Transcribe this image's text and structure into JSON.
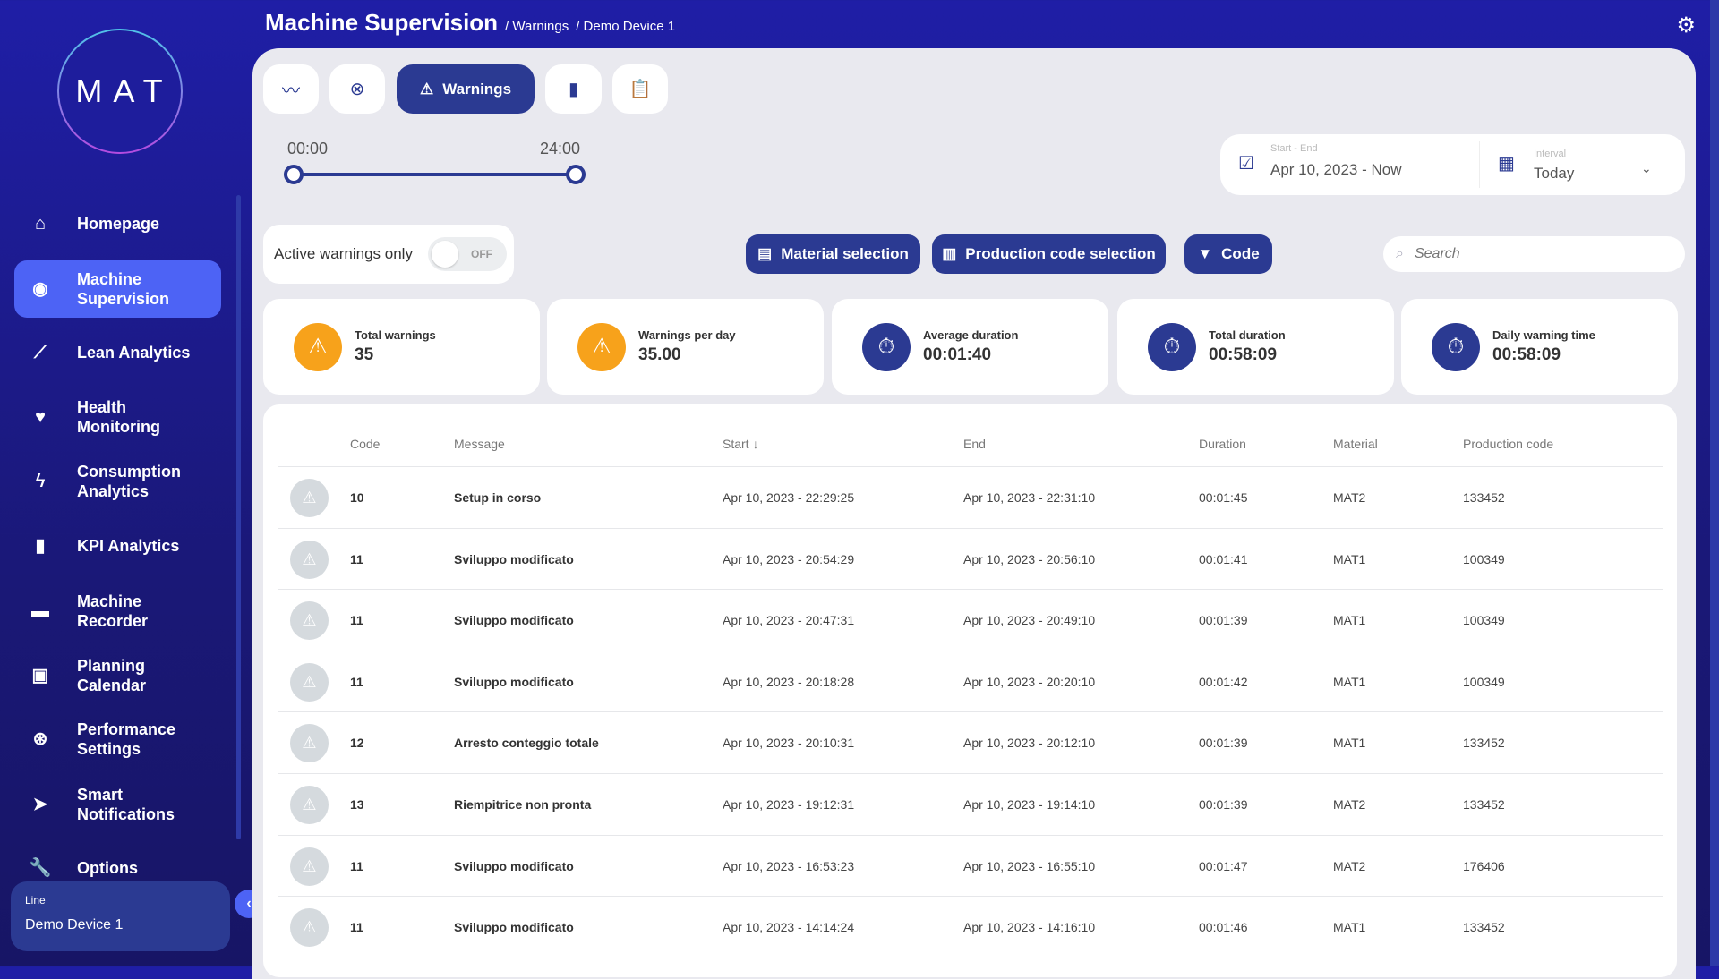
{
  "header": {
    "title": "Machine Supervision",
    "breadcrumbs": [
      "/ Warnings",
      "/ Demo Device 1"
    ]
  },
  "logo": "MAT",
  "sidebar": {
    "items": [
      {
        "label": "Homepage",
        "icon": "home-icon",
        "glyph": "⌂"
      },
      {
        "label": "Machine Supervision",
        "icon": "eye-icon",
        "glyph": "◉",
        "active": true
      },
      {
        "label": "Lean Analytics",
        "icon": "trend-icon",
        "glyph": "⟋"
      },
      {
        "label": "Health Monitoring",
        "icon": "heart-pulse-icon",
        "glyph": "♥"
      },
      {
        "label": "Consumption Analytics",
        "icon": "lightning-icon",
        "glyph": "ϟ"
      },
      {
        "label": "KPI Analytics",
        "icon": "bar-chart-icon",
        "glyph": "▮"
      },
      {
        "label": "Machine Recorder",
        "icon": "recorder-icon",
        "glyph": "▬"
      },
      {
        "label": "Planning Calendar",
        "icon": "calendar-icon",
        "glyph": "▣"
      },
      {
        "label": "Performance Settings",
        "icon": "gauge-icon",
        "glyph": "⊛"
      },
      {
        "label": "Smart Notifications",
        "icon": "send-icon",
        "glyph": "➤"
      },
      {
        "label": "Options",
        "icon": "wrench-icon",
        "glyph": "🔧"
      }
    ],
    "line_label": "Line",
    "line_value": "Demo Device 1"
  },
  "tabs": [
    {
      "icon": "trend-icon",
      "glyph": "〰"
    },
    {
      "icon": "error-circle-icon",
      "glyph": "⊗"
    },
    {
      "icon": "warning-icon",
      "glyph": "⚠",
      "label": "Warnings",
      "active": true
    },
    {
      "icon": "bar-chart-icon",
      "glyph": "▮"
    },
    {
      "icon": "clipboard-icon",
      "glyph": "📋"
    }
  ],
  "time_range": {
    "start": "00:00",
    "end": "24:00"
  },
  "date": {
    "range_label": "Start - End",
    "range_value": "Apr 10, 2023 - Now",
    "interval_label": "Interval",
    "interval_value": "Today"
  },
  "filters": {
    "active_only_label": "Active warnings only",
    "toggle_state": "OFF",
    "material": "Material selection",
    "production": "Production code selection",
    "code": "Code",
    "search_placeholder": "Search"
  },
  "stats": [
    {
      "label": "Total warnings",
      "value": "35",
      "color": "#f7a21b"
    },
    {
      "label": "Warnings per day",
      "value": "35.00",
      "color": "#f7a21b"
    },
    {
      "label": "Average duration",
      "value": "00:01:40",
      "color": "#2b3a92"
    },
    {
      "label": "Total duration",
      "value": "00:58:09",
      "color": "#2b3a92"
    },
    {
      "label": "Daily warning time",
      "value": "00:58:09",
      "color": "#2b3a92"
    }
  ],
  "table": {
    "columns": [
      "Code",
      "Message",
      "Start ↓",
      "End",
      "Duration",
      "Material",
      "Production code"
    ],
    "rows": [
      [
        "10",
        "Setup in corso",
        "Apr 10, 2023 - 22:29:25",
        "Apr 10, 2023 - 22:31:10",
        "00:01:45",
        "MAT2",
        "133452"
      ],
      [
        "11",
        "Sviluppo modificato",
        "Apr 10, 2023 - 20:54:29",
        "Apr 10, 2023 - 20:56:10",
        "00:01:41",
        "MAT1",
        "100349"
      ],
      [
        "11",
        "Sviluppo modificato",
        "Apr 10, 2023 - 20:47:31",
        "Apr 10, 2023 - 20:49:10",
        "00:01:39",
        "MAT1",
        "100349"
      ],
      [
        "11",
        "Sviluppo modificato",
        "Apr 10, 2023 - 20:18:28",
        "Apr 10, 2023 - 20:20:10",
        "00:01:42",
        "MAT1",
        "100349"
      ],
      [
        "12",
        "Arresto conteggio totale",
        "Apr 10, 2023 - 20:10:31",
        "Apr 10, 2023 - 20:12:10",
        "00:01:39",
        "MAT1",
        "133452"
      ],
      [
        "13",
        "Riempitrice non pronta",
        "Apr 10, 2023 - 19:12:31",
        "Apr 10, 2023 - 19:14:10",
        "00:01:39",
        "MAT2",
        "133452"
      ],
      [
        "11",
        "Sviluppo modificato",
        "Apr 10, 2023 - 16:53:23",
        "Apr 10, 2023 - 16:55:10",
        "00:01:47",
        "MAT2",
        "176406"
      ],
      [
        "11",
        "Sviluppo modificato",
        "Apr 10, 2023 - 14:14:24",
        "Apr 10, 2023 - 14:16:10",
        "00:01:46",
        "MAT1",
        "133452"
      ]
    ]
  }
}
